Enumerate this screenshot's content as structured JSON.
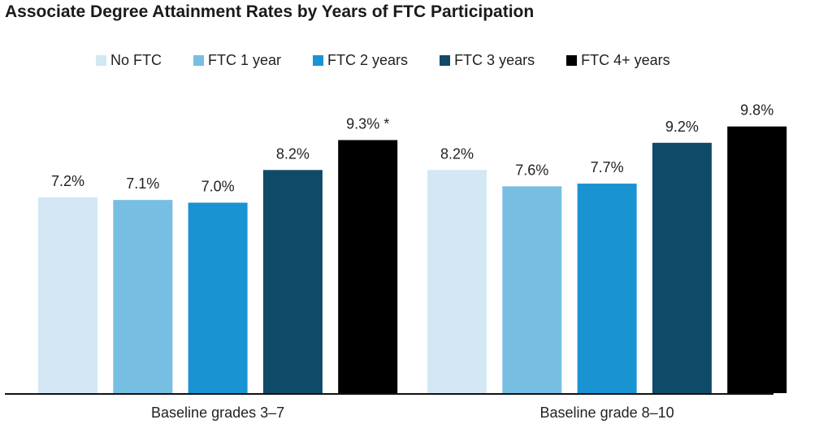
{
  "chart_data": {
    "type": "bar",
    "title": "Associate Degree Attainment Rates by Years of FTC Participation",
    "categories": [
      "Baseline grades 3–7",
      "Baseline grade 8–10"
    ],
    "series": [
      {
        "name": "No FTC",
        "color": "#d3e7f4",
        "values": [
          7.2,
          8.2
        ],
        "labels": [
          "7.2%",
          "8.2%"
        ]
      },
      {
        "name": "FTC 1 year",
        "color": "#77bfe2",
        "values": [
          7.1,
          7.6
        ],
        "labels": [
          "7.1%",
          "7.6%"
        ]
      },
      {
        "name": "FTC 2 years",
        "color": "#1a93d3",
        "values": [
          7.0,
          7.7
        ],
        "labels": [
          "7.0%",
          "7.7%"
        ]
      },
      {
        "name": "FTC 3 years",
        "color": "#0f4a68",
        "values": [
          8.2,
          9.2
        ],
        "labels": [
          "8.2%",
          "9.2%"
        ]
      },
      {
        "name": "FTC 4+ years",
        "color": "#000000",
        "values": [
          9.3,
          9.8
        ],
        "labels": [
          "9.3% *",
          "9.8%"
        ]
      }
    ],
    "ylim": [
      0,
      10
    ],
    "xlabel": "",
    "ylabel": "",
    "grid": false,
    "legend_position": "top"
  }
}
